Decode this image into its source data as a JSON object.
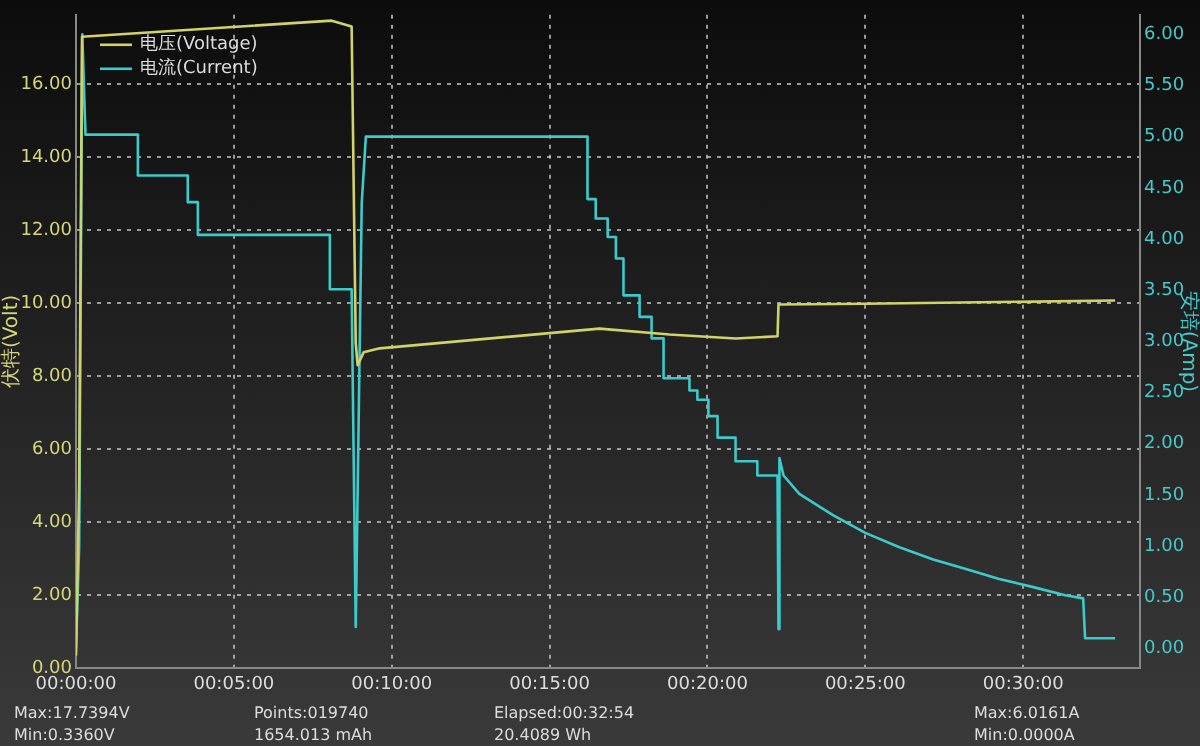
{
  "chart_data": {
    "type": "line",
    "ylabel": "伏特(Volt)",
    "y2label": "安培(Amp)",
    "xlim": [
      0,
      33.7
    ],
    "xticks": [
      {
        "value": 0,
        "label": "00:00:00"
      },
      {
        "value": 5,
        "label": "00:05:00"
      },
      {
        "value": 10,
        "label": "00:10:00"
      },
      {
        "value": 15,
        "label": "00:15:00"
      },
      {
        "value": 20,
        "label": "00:20:00"
      },
      {
        "value": 25,
        "label": "00:25:00"
      },
      {
        "value": 30,
        "label": "00:30:00"
      }
    ],
    "ylim": [
      0,
      17.9
    ],
    "yticks": [
      {
        "value": 0,
        "label": "0.00"
      },
      {
        "value": 2,
        "label": "2.00"
      },
      {
        "value": 4,
        "label": "4.00"
      },
      {
        "value": 6,
        "label": "6.00"
      },
      {
        "value": 8,
        "label": "8.00"
      },
      {
        "value": 10,
        "label": "10.00"
      },
      {
        "value": 12,
        "label": "12.00"
      },
      {
        "value": 14,
        "label": "14.00"
      },
      {
        "value": 16,
        "label": "16.00"
      }
    ],
    "y2lim": [
      -0.19,
      6.19
    ],
    "y2ticks": [
      {
        "value": 0,
        "label": "0.00"
      },
      {
        "value": 0.5,
        "label": "0.50"
      },
      {
        "value": 1,
        "label": "1.00"
      },
      {
        "value": 1.5,
        "label": "1.50"
      },
      {
        "value": 2,
        "label": "2.00"
      },
      {
        "value": 2.5,
        "label": "2.50"
      },
      {
        "value": 3,
        "label": "3.00"
      },
      {
        "value": 3.5,
        "label": "3.50"
      },
      {
        "value": 4,
        "label": "4.00"
      },
      {
        "value": 4.5,
        "label": "4.50"
      },
      {
        "value": 5,
        "label": "5.00"
      },
      {
        "value": 5.5,
        "label": "5.50"
      },
      {
        "value": 6,
        "label": "6.00"
      }
    ],
    "grid": true,
    "legend": "top left",
    "marker": "none",
    "line_style": "solid",
    "series": [
      {
        "name": "电压(Voltage)",
        "color": "#d2d26a",
        "x": [
          0,
          0.1,
          0.19,
          8.1,
          8.73,
          8.86,
          8.92,
          9.11,
          9.62,
          16.58,
          18.8,
          20.89,
          22.22,
          22.25,
          25.0,
          32.91
        ],
        "values": [
          0.34,
          5,
          17.3,
          17.74,
          17.58,
          8.9,
          8.3,
          8.65,
          8.76,
          9.3,
          9.14,
          9.03,
          9.09,
          9.96,
          9.98,
          10.07
        ]
      },
      {
        "name": "电流(Current)",
        "color": "#3ccaca",
        "axis": "y2",
        "x": [
          0,
          0.1,
          0.2,
          0.3,
          1.96,
          1.96,
          3.54,
          3.54,
          3.86,
          3.86,
          8.04,
          8.04,
          8.73,
          8.86,
          9.05,
          9.18,
          16.2,
          16.2,
          16.46,
          16.46,
          16.84,
          16.84,
          17.1,
          17.1,
          17.34,
          17.34,
          17.85,
          17.85,
          18.23,
          18.23,
          18.61,
          18.61,
          19.43,
          19.43,
          19.68,
          19.68,
          20.03,
          20.03,
          20.32,
          20.32,
          20.89,
          20.89,
          21.58,
          21.58,
          22.22,
          22.25,
          22.28,
          22.41,
          22.91,
          23.99,
          25.0,
          26.08,
          27.15,
          28.16,
          29.24,
          30.32,
          31.33,
          31.9,
          31.96,
          32.91
        ],
        "values": [
          0,
          1.0,
          6.0,
          5.02,
          5.02,
          4.62,
          4.62,
          4.36,
          4.36,
          4.04,
          4.04,
          3.51,
          3.51,
          0.21,
          4.35,
          5.0,
          5.0,
          4.39,
          4.39,
          4.2,
          4.2,
          4.02,
          4.02,
          3.81,
          3.81,
          3.45,
          3.45,
          3.24,
          3.24,
          3.03,
          3.03,
          2.64,
          2.64,
          2.52,
          2.52,
          2.43,
          2.43,
          2.27,
          2.27,
          2.06,
          2.06,
          1.83,
          1.83,
          1.69,
          1.69,
          0.19,
          1.86,
          1.69,
          1.51,
          1.3,
          1.13,
          0.99,
          0.87,
          0.78,
          0.68,
          0.6,
          0.52,
          0.49,
          0.1,
          0.1
        ]
      }
    ],
    "annotations": [
      "Max:17.7394V",
      "Min:0.3360V",
      "Points:019740",
      "1654.013 mAh",
      "Elapsed:00:32:54",
      "20.4089 Wh",
      "Max:6.0161A",
      "Min:0.0000A"
    ]
  }
}
